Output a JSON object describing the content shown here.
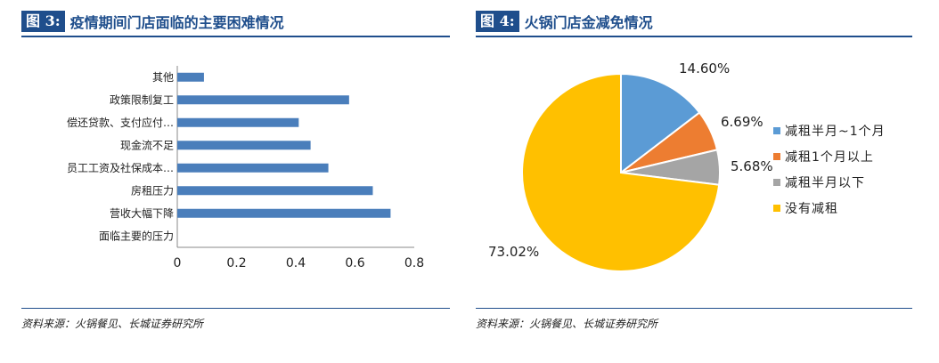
{
  "left": {
    "fig_label": "图 3:",
    "title": "疫情期间门店面临的主要困难情况",
    "source": "资料来源：火锅餐见、长城证券研究所"
  },
  "right": {
    "fig_label": "图 4:",
    "title": "火锅门店金减免情况",
    "source": "资料来源：火锅餐见、长城证券研究所"
  },
  "chart_data": [
    {
      "type": "bar",
      "orientation": "horizontal",
      "categories": [
        "其他",
        "政策限制复工",
        "偿还贷款、支付应付…",
        "现金流不足",
        "员工工资及社保成本…",
        "房租压力",
        "营收大幅下降",
        "面临主要的压力"
      ],
      "values": [
        0.09,
        0.58,
        0.41,
        0.45,
        0.51,
        0.66,
        0.72,
        0
      ],
      "xlim": [
        0,
        0.8
      ],
      "xticks": [
        "0",
        "0.2",
        "0.4",
        "0.6",
        "0.8"
      ],
      "color": "#4a7ebb"
    },
    {
      "type": "pie",
      "labels": [
        "减租半月~1个月",
        "减租1个月以上",
        "减租半月以下",
        "没有减租"
      ],
      "values": [
        14.6,
        6.69,
        5.68,
        73.02
      ],
      "value_labels": [
        "14.60%",
        "6.69%",
        "5.68%",
        "73.02%"
      ],
      "colors": [
        "#5b9bd5",
        "#ed7d31",
        "#a5a5a5",
        "#ffc000"
      ],
      "legend_position": "right"
    }
  ]
}
